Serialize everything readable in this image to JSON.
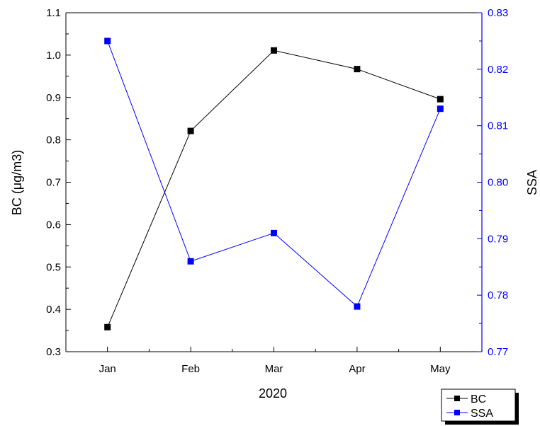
{
  "chart_data": {
    "type": "line",
    "categories": [
      "Jan",
      "Feb",
      "Mar",
      "Apr",
      "May"
    ],
    "xlabel": "2020",
    "series": [
      {
        "name": "BC",
        "axis": "left",
        "color": "#000000",
        "values": [
          0.358,
          0.821,
          1.011,
          0.967,
          0.896
        ]
      },
      {
        "name": "SSA",
        "axis": "right",
        "color": "#0000ff",
        "values": [
          0.825,
          0.786,
          0.791,
          0.778,
          0.813
        ]
      }
    ],
    "y_left": {
      "label": "BC (μg/m3)",
      "range": [
        0.3,
        1.1
      ],
      "ticks": [
        "0.3",
        "0.4",
        "0.5",
        "0.6",
        "0.7",
        "0.8",
        "0.9",
        "1.0",
        "1.1"
      ],
      "color": "#000000"
    },
    "y_right": {
      "label": "SSA",
      "range": [
        0.77,
        0.83
      ],
      "ticks": [
        "0.77",
        "0.78",
        "0.79",
        "0.80",
        "0.81",
        "0.82",
        "0.83"
      ],
      "color": "#0000ff"
    },
    "legend": {
      "position": "bottom-right",
      "entries": [
        "BC",
        "SSA"
      ]
    },
    "grid": false
  }
}
